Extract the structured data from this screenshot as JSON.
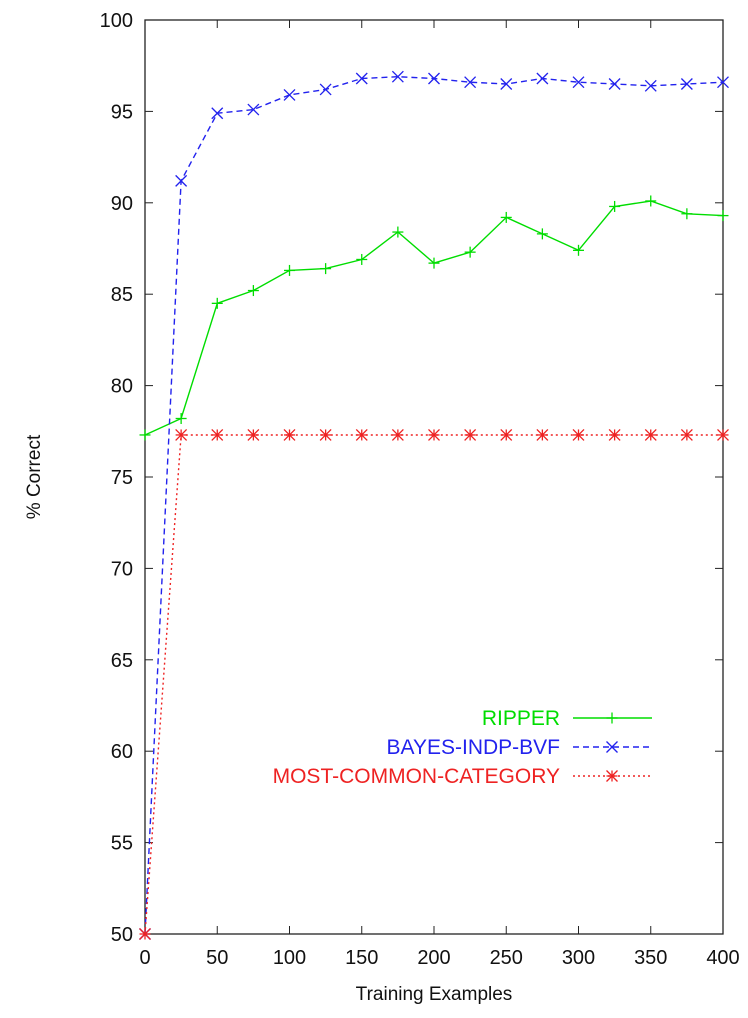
{
  "chart_data": {
    "type": "line",
    "title": "",
    "xlabel": "Training Examples",
    "ylabel": "% Correct",
    "xlim": [
      0,
      400
    ],
    "ylim": [
      50,
      100
    ],
    "x_ticks": [
      0,
      50,
      100,
      150,
      200,
      250,
      300,
      350,
      400
    ],
    "y_ticks": [
      50,
      55,
      60,
      65,
      70,
      75,
      80,
      85,
      90,
      95,
      100
    ],
    "grid": false,
    "legend_position": "bottom-right",
    "series": [
      {
        "name": "RIPPER",
        "color": "#00dd00",
        "line_style": "solid",
        "marker": "plus",
        "x": [
          0,
          25,
          50,
          75,
          100,
          125,
          150,
          175,
          200,
          225,
          250,
          275,
          300,
          325,
          350,
          375,
          400
        ],
        "y": [
          77.3,
          78.2,
          84.5,
          85.2,
          86.3,
          86.4,
          86.9,
          88.4,
          86.7,
          87.3,
          89.2,
          88.3,
          87.4,
          89.8,
          90.1,
          89.4,
          89.3
        ]
      },
      {
        "name": "BAYES-INDP-BVF",
        "color": "#2222ee",
        "line_style": "dashed",
        "marker": "x",
        "x": [
          0,
          25,
          50,
          75,
          100,
          125,
          150,
          175,
          200,
          225,
          250,
          275,
          300,
          325,
          350,
          375,
          400
        ],
        "y": [
          50.0,
          91.2,
          94.9,
          95.1,
          95.9,
          96.2,
          96.8,
          96.9,
          96.8,
          96.6,
          96.5,
          96.8,
          96.6,
          96.5,
          96.4,
          96.5,
          96.6
        ]
      },
      {
        "name": "MOST-COMMON-CATEGORY",
        "color": "#ee2222",
        "line_style": "dotted",
        "marker": "star",
        "x": [
          0,
          25,
          50,
          75,
          100,
          125,
          150,
          175,
          200,
          225,
          250,
          275,
          300,
          325,
          350,
          375,
          400
        ],
        "y": [
          50.0,
          77.3,
          77.3,
          77.3,
          77.3,
          77.3,
          77.3,
          77.3,
          77.3,
          77.3,
          77.3,
          77.3,
          77.3,
          77.3,
          77.3,
          77.3,
          77.3
        ]
      }
    ]
  }
}
